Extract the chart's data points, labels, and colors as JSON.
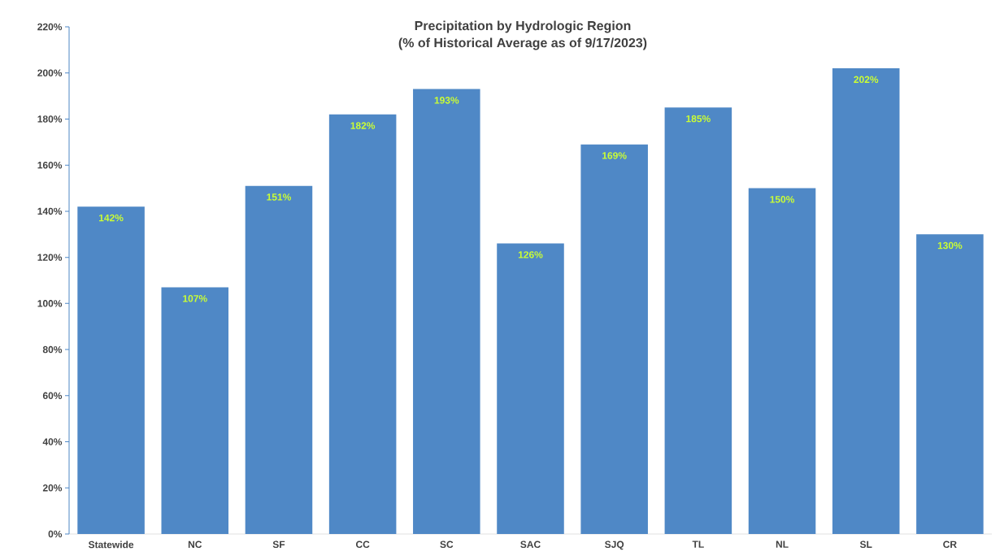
{
  "chart_data": {
    "type": "bar",
    "title": "Precipitation by Hydrologic Region",
    "subtitle": "(% of Historical Average as of 9/17/2023)",
    "categories": [
      "Statewide",
      "NC",
      "SF",
      "CC",
      "SC",
      "SAC",
      "SJQ",
      "TL",
      "NL",
      "SL",
      "CR"
    ],
    "values": [
      142,
      107,
      151,
      182,
      193,
      126,
      169,
      185,
      150,
      202,
      130
    ],
    "value_labels": [
      "142%",
      "107%",
      "151%",
      "182%",
      "193%",
      "126%",
      "169%",
      "185%",
      "150%",
      "202%",
      "130%"
    ],
    "color": "#4f88c6",
    "ylim": [
      0,
      220
    ],
    "yticks": [
      {
        "value": 0,
        "label": "0%"
      },
      {
        "value": 20,
        "label": "20%"
      },
      {
        "value": 40,
        "label": "40%"
      },
      {
        "value": 60,
        "label": "60%"
      },
      {
        "value": 80,
        "label": "80%"
      },
      {
        "value": 100,
        "label": "100%"
      },
      {
        "value": 120,
        "label": "120%"
      },
      {
        "value": 140,
        "label": "140%"
      },
      {
        "value": 160,
        "label": "160%"
      },
      {
        "value": 180,
        "label": "180%"
      },
      {
        "value": 200,
        "label": "200%"
      },
      {
        "value": 220,
        "label": "220%"
      }
    ],
    "grid": false
  }
}
